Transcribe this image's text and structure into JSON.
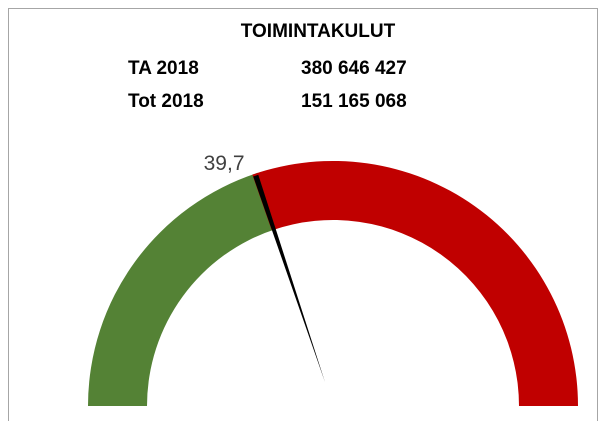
{
  "chart_data": {
    "type": "gauge",
    "title": "TOIMINTAKULUT",
    "rows": [
      [
        "TA 2018",
        "380 646 427"
      ],
      [
        "Tot 2018",
        "151 165 068"
      ]
    ],
    "values": [
      39.7
    ],
    "value_labels": [
      "39,7"
    ],
    "ylim": [
      0,
      100
    ],
    "colors": {
      "fill": "#548235",
      "rest": "#c00000",
      "needle": "#000000"
    }
  }
}
